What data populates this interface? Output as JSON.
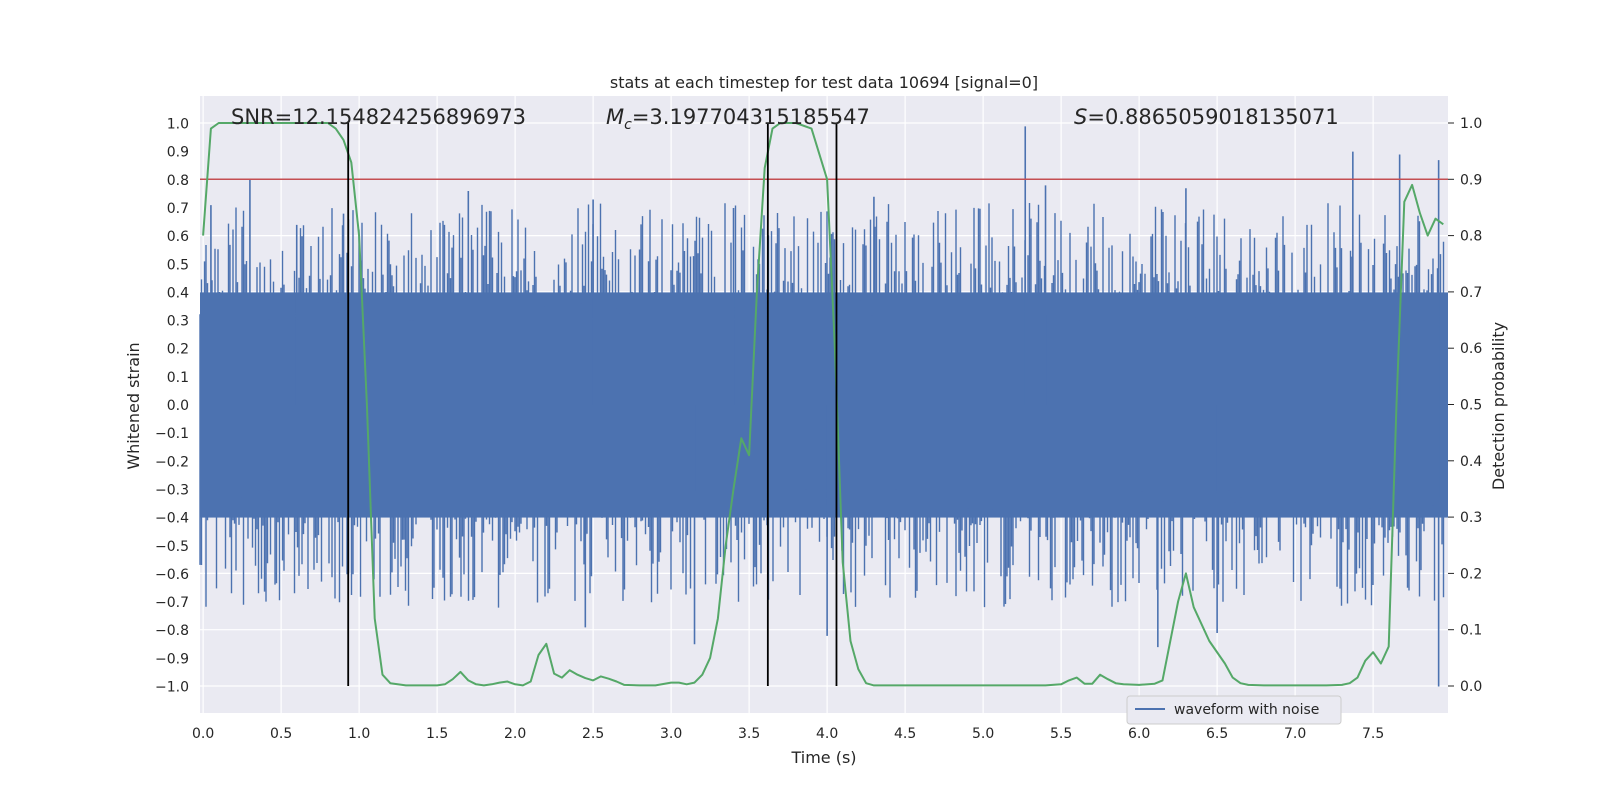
{
  "chart_data": {
    "type": "line",
    "title": "stats at each timestep for test data 10694 [signal=0]",
    "xlabel": "Time (s)",
    "ylabel": "Whitened strain",
    "y2label": "Detection probability",
    "xlim": [
      0.0,
      8.0
    ],
    "ylim": [
      -1.1,
      1.1
    ],
    "y2lim": [
      -0.05,
      1.05
    ],
    "xticks": [
      "0.0",
      "0.5",
      "1.0",
      "1.5",
      "2.0",
      "2.5",
      "3.0",
      "3.5",
      "4.0",
      "4.5",
      "5.0",
      "5.5",
      "6.0",
      "6.5",
      "7.0",
      "7.5"
    ],
    "yticks": [
      "1.0",
      "0.9",
      "0.8",
      "0.7",
      "0.6",
      "0.5",
      "0.4",
      "0.3",
      "0.2",
      "0.1",
      "0.0",
      "−0.1",
      "−0.2",
      "−0.3",
      "−0.4",
      "−0.5",
      "−0.6",
      "−0.7",
      "−0.8",
      "−0.9",
      "−1.0"
    ],
    "y2ticks": [
      "1.0",
      "0.9",
      "0.8",
      "0.7",
      "0.6",
      "0.5",
      "0.4",
      "0.3",
      "0.2",
      "0.1",
      "0.0"
    ],
    "grid": true,
    "annotations": {
      "snr": "SNR=12.154824256896973",
      "mc_symbol": "M",
      "mc_sub": "c",
      "mc_value": "=3.197704315185547",
      "s_symbol": "S",
      "s_value": "=0.8865059018135071"
    },
    "threshold": {
      "y2": 0.9,
      "color": "#c44e52"
    },
    "detection_boundaries_s": [
      0.93,
      3.62,
      4.06
    ],
    "legend": {
      "label": "waveform with noise",
      "position": "lower-right"
    },
    "series": [
      {
        "name": "waveform with noise",
        "color": "#4c72b0",
        "description": "dense whitened strain noise, approx 8 s",
        "core_band": [
          -0.4,
          0.4
        ],
        "spikes": [
          {
            "x": 0.05,
            "y": 0.71
          },
          {
            "x": 0.3,
            "y": 0.8
          },
          {
            "x": 0.6,
            "y": 0.64
          },
          {
            "x": 0.9,
            "y": 0.68
          },
          {
            "x": 1.7,
            "y": 0.76
          },
          {
            "x": 2.5,
            "y": 0.73
          },
          {
            "x": 3.4,
            "y": 0.7
          },
          {
            "x": 4.3,
            "y": 0.74
          },
          {
            "x": 5.27,
            "y": 0.99
          },
          {
            "x": 5.4,
            "y": 0.78
          },
          {
            "x": 6.3,
            "y": 0.77
          },
          {
            "x": 7.37,
            "y": 0.9
          },
          {
            "x": 7.67,
            "y": 0.89
          },
          {
            "x": 7.92,
            "y": 0.87
          },
          {
            "x": 2.45,
            "y": -0.79
          },
          {
            "x": 3.15,
            "y": -0.85
          },
          {
            "x": 4.0,
            "y": -0.82
          },
          {
            "x": 6.12,
            "y": -0.86
          },
          {
            "x": 6.5,
            "y": -0.81
          },
          {
            "x": 7.92,
            "y": -1.0
          }
        ]
      },
      {
        "name": "detection probability",
        "color": "#55a868",
        "axis": "right",
        "x": [
          0.0,
          0.05,
          0.1,
          0.2,
          0.3,
          0.4,
          0.5,
          0.6,
          0.7,
          0.8,
          0.85,
          0.9,
          0.95,
          1.0,
          1.05,
          1.1,
          1.15,
          1.2,
          1.3,
          1.4,
          1.5,
          1.55,
          1.6,
          1.65,
          1.7,
          1.75,
          1.8,
          1.85,
          1.9,
          1.95,
          2.0,
          2.05,
          2.1,
          2.15,
          2.2,
          2.25,
          2.3,
          2.35,
          2.4,
          2.45,
          2.5,
          2.55,
          2.6,
          2.65,
          2.7,
          2.8,
          2.9,
          3.0,
          3.05,
          3.1,
          3.15,
          3.2,
          3.25,
          3.3,
          3.35,
          3.4,
          3.45,
          3.5,
          3.55,
          3.6,
          3.65,
          3.7,
          3.75,
          3.8,
          3.9,
          4.0,
          4.05,
          4.1,
          4.15,
          4.2,
          4.25,
          4.3,
          4.5,
          5.0,
          5.4,
          5.5,
          5.55,
          5.6,
          5.65,
          5.7,
          5.75,
          5.8,
          5.85,
          5.9,
          6.0,
          6.1,
          6.15,
          6.2,
          6.25,
          6.3,
          6.35,
          6.45,
          6.55,
          6.6,
          6.65,
          6.7,
          6.8,
          7.0,
          7.2,
          7.3,
          7.35,
          7.4,
          7.45,
          7.5,
          7.55,
          7.6,
          7.65,
          7.7,
          7.75,
          7.8,
          7.85,
          7.9,
          7.95
        ],
        "values": [
          0.8,
          0.99,
          1.0,
          1.0,
          1.0,
          1.0,
          1.0,
          1.0,
          1.0,
          1.0,
          0.99,
          0.97,
          0.93,
          0.8,
          0.5,
          0.12,
          0.02,
          0.005,
          0.001,
          0.001,
          0.001,
          0.003,
          0.012,
          0.025,
          0.01,
          0.003,
          0.001,
          0.003,
          0.006,
          0.008,
          0.003,
          0.001,
          0.008,
          0.055,
          0.075,
          0.022,
          0.015,
          0.028,
          0.02,
          0.014,
          0.01,
          0.017,
          0.013,
          0.008,
          0.002,
          0.001,
          0.001,
          0.006,
          0.006,
          0.003,
          0.006,
          0.02,
          0.05,
          0.12,
          0.25,
          0.35,
          0.44,
          0.41,
          0.7,
          0.92,
          0.99,
          1.0,
          1.0,
          1.0,
          0.99,
          0.9,
          0.6,
          0.22,
          0.08,
          0.03,
          0.005,
          0.001,
          0.001,
          0.001,
          0.001,
          0.003,
          0.01,
          0.015,
          0.004,
          0.004,
          0.02,
          0.012,
          0.005,
          0.003,
          0.002,
          0.004,
          0.01,
          0.08,
          0.15,
          0.2,
          0.14,
          0.08,
          0.04,
          0.015,
          0.005,
          0.002,
          0.001,
          0.001,
          0.001,
          0.002,
          0.005,
          0.015,
          0.045,
          0.06,
          0.04,
          0.07,
          0.5,
          0.86,
          0.89,
          0.84,
          0.8,
          0.83,
          0.82
        ]
      }
    ]
  }
}
